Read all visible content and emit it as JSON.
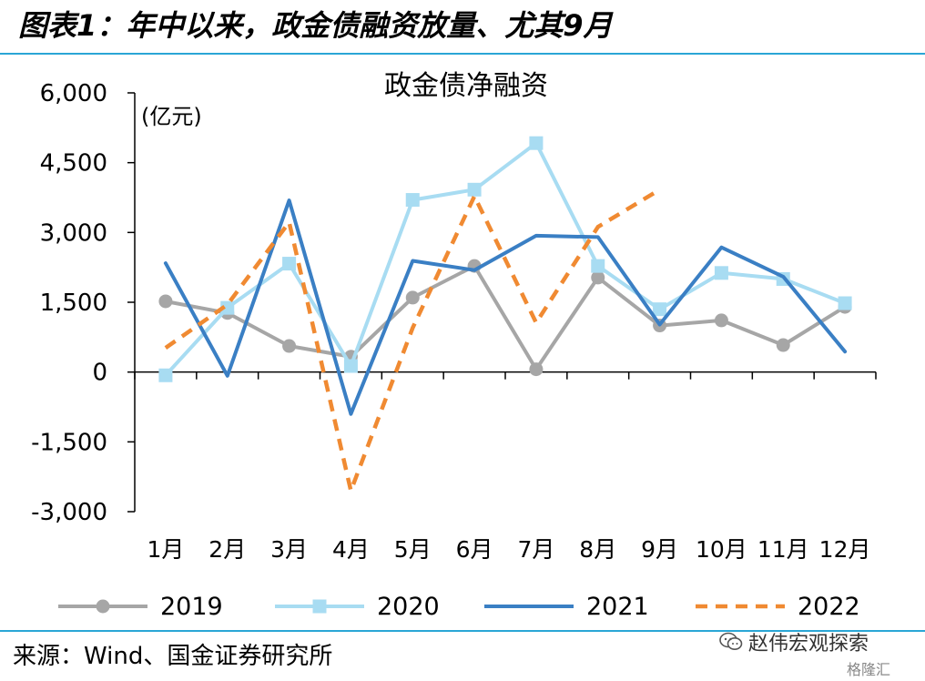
{
  "header": {
    "figure_title": "图表1：年中以来，政金债融资放量、尤其9月"
  },
  "footer": {
    "source": "来源：Wind、国金证券研究所",
    "watermark": "赵伟宏观探索",
    "watermark_sub": "格隆汇"
  },
  "chart_data": {
    "type": "line",
    "title": "政金债净融资",
    "ylabel": "(亿元)",
    "xlabel": "",
    "categories": [
      "1月",
      "2月",
      "3月",
      "4月",
      "5月",
      "6月",
      "7月",
      "8月",
      "9月",
      "10月",
      "11月",
      "12月"
    ],
    "ylim": [
      -3000,
      6000
    ],
    "yticks": [
      -3000,
      -1500,
      0,
      1500,
      3000,
      4500,
      6000
    ],
    "ytick_labels": [
      "-3,000",
      "-1,500",
      "0",
      "1,500",
      "3,000",
      "4,500",
      "6,000"
    ],
    "grid": false,
    "legend_position": "bottom",
    "series": [
      {
        "name": "2019",
        "color": "#a6a6a6",
        "style": "solid",
        "marker": "circle",
        "values": [
          1520,
          1270,
          560,
          330,
          1600,
          2280,
          60,
          2030,
          1000,
          1110,
          580,
          1400
        ]
      },
      {
        "name": "2020",
        "color": "#a8dcf2",
        "style": "solid",
        "marker": "square",
        "values": [
          -70,
          1380,
          2330,
          130,
          3700,
          3920,
          4920,
          2280,
          1350,
          2130,
          2000,
          1480
        ]
      },
      {
        "name": "2021",
        "color": "#3a7fc4",
        "style": "solid",
        "marker": "none",
        "values": [
          2340,
          -80,
          3690,
          -900,
          2390,
          2190,
          2930,
          2900,
          1020,
          2680,
          2050,
          440
        ]
      },
      {
        "name": "2022",
        "color": "#f08a32",
        "style": "dashed",
        "marker": "none",
        "values": [
          520,
          1450,
          3220,
          -2550,
          950,
          3780,
          1060,
          3120,
          3920,
          null,
          null,
          null
        ]
      }
    ]
  }
}
